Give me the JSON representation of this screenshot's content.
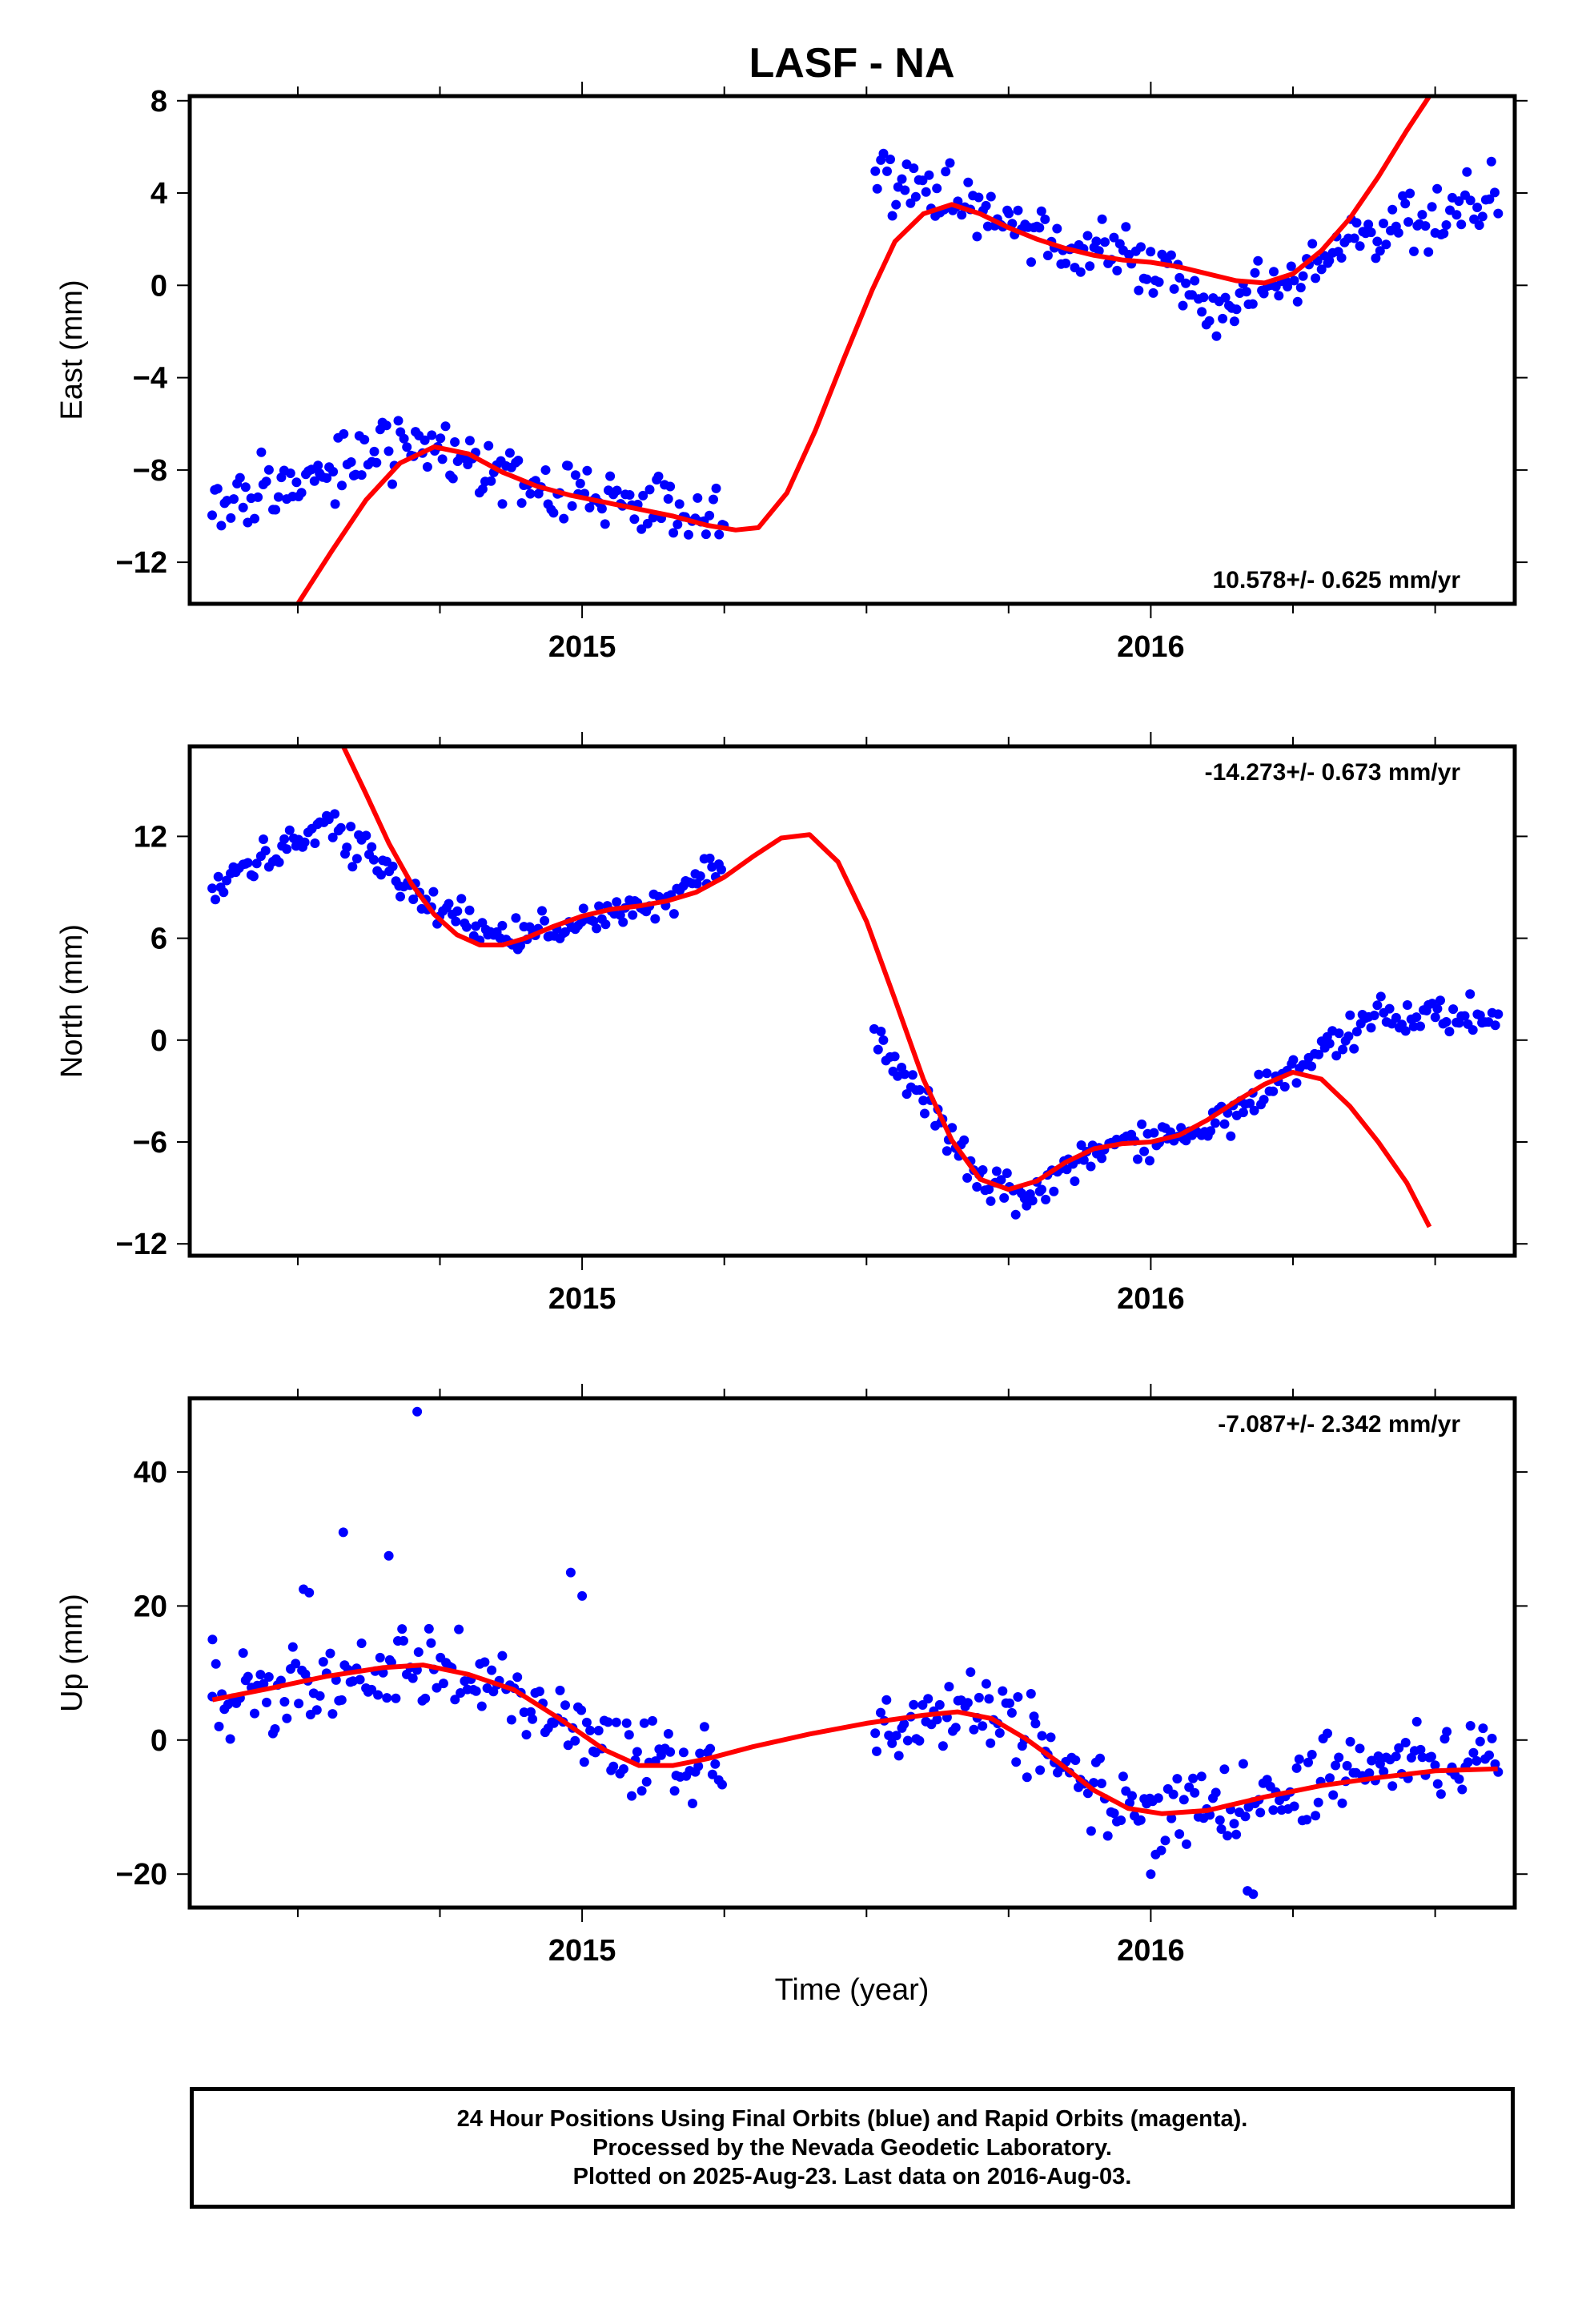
{
  "colors": {
    "final_orbits": "#0000ff",
    "fit": "#ff0000",
    "axes": "#000000"
  },
  "caption": {
    "line1": "24 Hour Positions Using Final Orbits (blue) and Rapid Orbits (magenta).",
    "line2": "Processed by the Nevada Geodetic Laboratory.",
    "line3": "Plotted on 2025-Aug-23. Last data on 2016-Aug-03."
  },
  "chart_data": [
    {
      "type": "scatter",
      "title": "LASF - NA",
      "xlabel": "",
      "ylabel": "East (mm)",
      "rate_label": "10.578+/- 0.625 mm/yr",
      "rate_position": "bottom-right",
      "xlim": [
        2014.31,
        2016.64
      ],
      "ylim": [
        -13.8,
        8.2
      ],
      "y_ticks": [
        -12,
        -8,
        -4,
        0,
        4,
        8
      ],
      "x_ticks": [
        2015,
        2016
      ],
      "gap": [
        2015.25,
        2015.51
      ],
      "fit_curve": [
        [
          2014.5,
          -13.8
        ],
        [
          2014.56,
          -11.5
        ],
        [
          2014.62,
          -9.3
        ],
        [
          2014.68,
          -7.7
        ],
        [
          2014.74,
          -7.0
        ],
        [
          2014.8,
          -7.3
        ],
        [
          2014.86,
          -8.1
        ],
        [
          2014.92,
          -8.7
        ],
        [
          2014.98,
          -9.1
        ],
        [
          2015.04,
          -9.4
        ],
        [
          2015.1,
          -9.7
        ],
        [
          2015.16,
          -10.0
        ],
        [
          2015.22,
          -10.4
        ],
        [
          2015.27,
          -10.6
        ],
        [
          2015.31,
          -10.5
        ],
        [
          2015.36,
          -9.0
        ],
        [
          2015.41,
          -6.3
        ],
        [
          2015.46,
          -3.2
        ],
        [
          2015.51,
          -0.2
        ],
        [
          2015.55,
          1.9
        ],
        [
          2015.6,
          3.1
        ],
        [
          2015.65,
          3.5
        ],
        [
          2015.7,
          3.1
        ],
        [
          2015.75,
          2.5
        ],
        [
          2015.8,
          2.0
        ],
        [
          2015.85,
          1.6
        ],
        [
          2015.9,
          1.3
        ],
        [
          2015.95,
          1.1
        ],
        [
          2016.0,
          1.0
        ],
        [
          2016.05,
          0.8
        ],
        [
          2016.1,
          0.5
        ],
        [
          2016.15,
          0.2
        ],
        [
          2016.2,
          0.1
        ],
        [
          2016.25,
          0.5
        ],
        [
          2016.3,
          1.5
        ],
        [
          2016.35,
          2.9
        ],
        [
          2016.4,
          4.7
        ],
        [
          2016.45,
          6.7
        ],
        [
          2016.49,
          8.2
        ]
      ],
      "scatter_model": {
        "start": 2014.35,
        "end": 2016.61,
        "noise": 1.25,
        "count": 430,
        "anchors": [
          [
            2014.35,
            -9.8
          ],
          [
            2014.55,
            -8.0
          ],
          [
            2014.7,
            -6.8
          ],
          [
            2014.85,
            -8.4
          ],
          [
            2015.0,
            -9.0
          ],
          [
            2015.25,
            -10.4
          ],
          [
            2015.51,
            4.8
          ],
          [
            2015.65,
            3.9
          ],
          [
            2015.8,
            2.2
          ],
          [
            2015.95,
            1.2
          ],
          [
            2016.1,
            -0.8
          ],
          [
            2016.2,
            -0.3
          ],
          [
            2016.35,
            1.8
          ],
          [
            2016.5,
            2.8
          ],
          [
            2016.61,
            3.6
          ]
        ]
      }
    },
    {
      "type": "scatter",
      "title": "",
      "xlabel": "",
      "ylabel": "North (mm)",
      "rate_label": "-14.273+/- 0.673 mm/yr",
      "rate_position": "top-right",
      "xlim": [
        2014.31,
        2016.64
      ],
      "ylim": [
        -12.7,
        17.3
      ],
      "y_ticks": [
        -12,
        -6,
        0,
        6,
        12
      ],
      "x_ticks": [
        2015,
        2016
      ],
      "gap": [
        2015.25,
        2015.51
      ],
      "fit_curve": [
        [
          2014.58,
          17.3
        ],
        [
          2014.62,
          14.5
        ],
        [
          2014.66,
          11.6
        ],
        [
          2014.7,
          9.2
        ],
        [
          2014.74,
          7.4
        ],
        [
          2014.78,
          6.2
        ],
        [
          2014.82,
          5.6
        ],
        [
          2014.86,
          5.6
        ],
        [
          2014.9,
          6.0
        ],
        [
          2014.95,
          6.7
        ],
        [
          2015.0,
          7.3
        ],
        [
          2015.05,
          7.7
        ],
        [
          2015.1,
          7.9
        ],
        [
          2015.15,
          8.2
        ],
        [
          2015.2,
          8.7
        ],
        [
          2015.25,
          9.6
        ],
        [
          2015.3,
          10.8
        ],
        [
          2015.35,
          11.9
        ],
        [
          2015.4,
          12.1
        ],
        [
          2015.45,
          10.5
        ],
        [
          2015.5,
          7.0
        ],
        [
          2015.55,
          2.4
        ],
        [
          2015.6,
          -2.3
        ],
        [
          2015.65,
          -5.9
        ],
        [
          2015.7,
          -8.2
        ],
        [
          2015.75,
          -8.8
        ],
        [
          2015.8,
          -8.3
        ],
        [
          2015.85,
          -7.2
        ],
        [
          2015.9,
          -6.4
        ],
        [
          2015.95,
          -6.1
        ],
        [
          2016.0,
          -6.0
        ],
        [
          2016.05,
          -5.6
        ],
        [
          2016.1,
          -4.7
        ],
        [
          2016.15,
          -3.6
        ],
        [
          2016.2,
          -2.6
        ],
        [
          2016.25,
          -1.9
        ],
        [
          2016.3,
          -2.3
        ],
        [
          2016.35,
          -3.9
        ],
        [
          2016.4,
          -6.0
        ],
        [
          2016.45,
          -8.4
        ],
        [
          2016.49,
          -11.0
        ]
      ],
      "scatter_model": {
        "start": 2014.35,
        "end": 2016.61,
        "noise": 0.9,
        "count": 430,
        "anchors": [
          [
            2014.35,
            9.0
          ],
          [
            2014.45,
            10.8
          ],
          [
            2014.55,
            12.8
          ],
          [
            2014.65,
            10.2
          ],
          [
            2014.75,
            7.4
          ],
          [
            2014.85,
            6.2
          ],
          [
            2014.95,
            6.6
          ],
          [
            2015.05,
            7.5
          ],
          [
            2015.15,
            8.4
          ],
          [
            2015.25,
            10.5
          ],
          [
            2015.51,
            0.8
          ],
          [
            2015.6,
            -3.5
          ],
          [
            2015.7,
            -8.0
          ],
          [
            2015.78,
            -9.3
          ],
          [
            2015.9,
            -6.2
          ],
          [
            2016.0,
            -6.0
          ],
          [
            2016.1,
            -5.0
          ],
          [
            2016.2,
            -3.0
          ],
          [
            2016.3,
            -0.3
          ],
          [
            2016.4,
            1.5
          ],
          [
            2016.5,
            1.3
          ],
          [
            2016.61,
            1.6
          ]
        ]
      }
    },
    {
      "type": "scatter",
      "title": "",
      "xlabel": "Time (year)",
      "ylabel": "Up (mm)",
      "rate_label": "-7.087+/- 2.342 mm/yr",
      "rate_position": "top-right",
      "xlim": [
        2014.31,
        2016.64
      ],
      "ylim": [
        -25,
        51
      ],
      "y_ticks": [
        -20,
        0,
        20,
        40
      ],
      "x_ticks": [
        2015,
        2016
      ],
      "gap": [
        2015.25,
        2015.51
      ],
      "fit_curve": [
        [
          2014.35,
          6.0
        ],
        [
          2014.45,
          7.7
        ],
        [
          2014.55,
          9.5
        ],
        [
          2014.65,
          10.8
        ],
        [
          2014.72,
          11.2
        ],
        [
          2014.8,
          9.8
        ],
        [
          2014.88,
          7.5
        ],
        [
          2014.96,
          3.2
        ],
        [
          2015.04,
          -1.5
        ],
        [
          2015.1,
          -3.8
        ],
        [
          2015.16,
          -3.8
        ],
        [
          2015.22,
          -2.8
        ],
        [
          2015.3,
          -1.0
        ],
        [
          2015.4,
          0.9
        ],
        [
          2015.5,
          2.5
        ],
        [
          2015.6,
          3.7
        ],
        [
          2015.66,
          4.2
        ],
        [
          2015.72,
          3.2
        ],
        [
          2015.78,
          0.2
        ],
        [
          2015.84,
          -3.5
        ],
        [
          2015.9,
          -7.5
        ],
        [
          2015.96,
          -10.2
        ],
        [
          2016.02,
          -11.0
        ],
        [
          2016.1,
          -10.5
        ],
        [
          2016.2,
          -8.5
        ],
        [
          2016.3,
          -6.8
        ],
        [
          2016.4,
          -5.6
        ],
        [
          2016.5,
          -4.6
        ],
        [
          2016.61,
          -4.3
        ]
      ],
      "scatter_model": {
        "start": 2014.35,
        "end": 2016.61,
        "noise": 5.2,
        "count": 430,
        "anchors": [
          [
            2014.35,
            6.5
          ],
          [
            2014.55,
            9.5
          ],
          [
            2014.7,
            11.8
          ],
          [
            2014.85,
            9.0
          ],
          [
            2015.0,
            1.0
          ],
          [
            2015.1,
            -3.5
          ],
          [
            2015.25,
            -2.5
          ],
          [
            2015.51,
            1.0
          ],
          [
            2015.6,
            3.0
          ],
          [
            2015.7,
            5.5
          ],
          [
            2015.8,
            0.5
          ],
          [
            2015.9,
            -7.5
          ],
          [
            2016.0,
            -12.0
          ],
          [
            2016.1,
            -11.0
          ],
          [
            2016.2,
            -8.5
          ],
          [
            2016.35,
            -4.5
          ],
          [
            2016.5,
            -3.0
          ],
          [
            2016.61,
            -2.0
          ]
        ]
      },
      "outliers": [
        [
          2014.35,
          15.0
        ],
        [
          2014.51,
          22.5
        ],
        [
          2014.52,
          22.0
        ],
        [
          2014.58,
          31.0
        ],
        [
          2014.66,
          27.5
        ],
        [
          2014.71,
          49.0
        ],
        [
          2014.98,
          25.0
        ],
        [
          2015.0,
          21.5
        ],
        [
          2016.0,
          -20.0
        ],
        [
          2016.17,
          -22.5
        ],
        [
          2016.18,
          -23.0
        ]
      ]
    }
  ]
}
